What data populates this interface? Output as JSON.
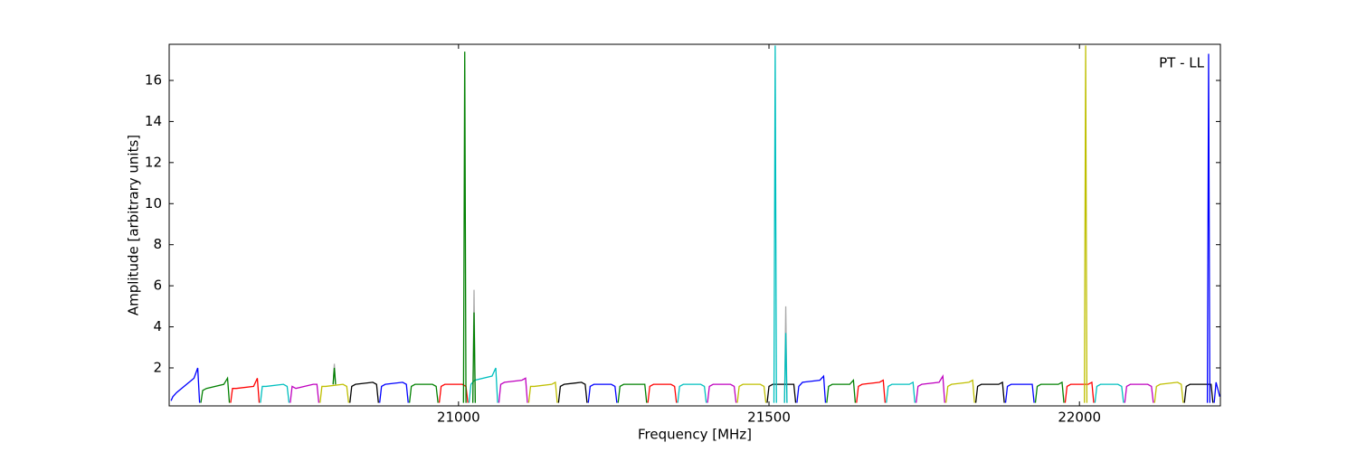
{
  "chart_data": {
    "type": "line",
    "xlabel": "Frequency [MHz]",
    "ylabel": "Amplitude [arbitrary units]",
    "annotation": "PT - LL",
    "xlim": [
      20534,
      22227
    ],
    "ylim": [
      0.15,
      17.76
    ],
    "xticks": [
      21000,
      21500,
      22000
    ],
    "yticks": [
      2,
      4,
      6,
      8,
      10,
      12,
      14,
      16
    ],
    "series": [
      {
        "color": "#aaaaaa",
        "x": [
          20798,
          20800,
          20802
        ],
        "values": [
          1.2,
          2.2,
          1.2
        ]
      },
      {
        "color": "#aaaaaa",
        "x": [
          21023,
          21025,
          21027
        ],
        "values": [
          0.3,
          5.8,
          0.3
        ]
      },
      {
        "color": "#aaaaaa",
        "x": [
          21525,
          21527,
          21529
        ],
        "values": [
          0.3,
          5.0,
          0.3
        ]
      },
      {
        "color": "#0000ff",
        "x": [
          20537,
          20540,
          20546,
          20574,
          20580,
          20583
        ],
        "values": [
          0.4,
          0.6,
          0.8,
          1.5,
          2.0,
          0.3
        ]
      },
      {
        "color": "#008000",
        "x": [
          20585,
          20588,
          20594,
          20622,
          20628,
          20631
        ],
        "values": [
          0.3,
          0.9,
          1.0,
          1.2,
          1.5,
          0.3
        ]
      },
      {
        "color": "#ff0000",
        "x": [
          20633,
          20636,
          20642,
          20670,
          20676,
          20679
        ],
        "values": [
          0.3,
          1.0,
          1.0,
          1.1,
          1.5,
          0.3
        ]
      },
      {
        "color": "#00bfbf",
        "x": [
          20681,
          20684,
          20690,
          20718,
          20724,
          20727
        ],
        "values": [
          0.3,
          1.1,
          1.1,
          1.2,
          1.1,
          0.3
        ]
      },
      {
        "color": "#bf00bf",
        "x": [
          20729,
          20732,
          20738,
          20766,
          20772,
          20775
        ],
        "values": [
          0.3,
          1.1,
          1.0,
          1.2,
          1.2,
          0.3
        ]
      },
      {
        "color": "#bfbf00",
        "x": [
          20777,
          20780,
          20786,
          20814,
          20820,
          20823
        ],
        "values": [
          0.3,
          1.1,
          1.1,
          1.2,
          1.1,
          0.3
        ]
      },
      {
        "color": "#000000",
        "x": [
          20825,
          20828,
          20834,
          20862,
          20868,
          20871
        ],
        "values": [
          0.3,
          1.1,
          1.2,
          1.3,
          1.2,
          0.3
        ]
      },
      {
        "color": "#0000ff",
        "x": [
          20873,
          20876,
          20882,
          20910,
          20916,
          20919
        ],
        "values": [
          0.3,
          1.1,
          1.2,
          1.3,
          1.2,
          0.3
        ]
      },
      {
        "color": "#008000",
        "x": [
          20921,
          20924,
          20930,
          20958,
          20964,
          20967
        ],
        "values": [
          0.3,
          1.1,
          1.2,
          1.2,
          1.1,
          0.3
        ]
      },
      {
        "color": "#ff0000",
        "x": [
          20969,
          20972,
          20978,
          21006,
          21012,
          21015
        ],
        "values": [
          0.3,
          1.1,
          1.2,
          1.2,
          1.1,
          0.3
        ]
      },
      {
        "color": "#00bfbf",
        "x": [
          21017,
          21020,
          21026,
          21054,
          21060,
          21063
        ],
        "values": [
          0.3,
          1.2,
          1.4,
          1.6,
          2.0,
          0.3
        ]
      },
      {
        "color": "#bf00bf",
        "x": [
          21065,
          21068,
          21074,
          21102,
          21108,
          21111
        ],
        "values": [
          0.3,
          1.2,
          1.3,
          1.4,
          1.5,
          0.3
        ]
      },
      {
        "color": "#bfbf00",
        "x": [
          21113,
          21116,
          21122,
          21150,
          21156,
          21159
        ],
        "values": [
          0.3,
          1.1,
          1.1,
          1.2,
          1.3,
          0.3
        ]
      },
      {
        "color": "#000000",
        "x": [
          21161,
          21164,
          21170,
          21198,
          21204,
          21207
        ],
        "values": [
          0.3,
          1.1,
          1.2,
          1.3,
          1.2,
          0.3
        ]
      },
      {
        "color": "#0000ff",
        "x": [
          21209,
          21212,
          21218,
          21246,
          21252,
          21255
        ],
        "values": [
          0.3,
          1.1,
          1.2,
          1.2,
          1.1,
          0.3
        ]
      },
      {
        "color": "#008000",
        "x": [
          21257,
          21260,
          21266,
          21294,
          21300,
          21303
        ],
        "values": [
          0.3,
          1.1,
          1.2,
          1.2,
          1.2,
          0.3
        ]
      },
      {
        "color": "#ff0000",
        "x": [
          21305,
          21308,
          21314,
          21342,
          21348,
          21351
        ],
        "values": [
          0.3,
          1.1,
          1.2,
          1.2,
          1.1,
          0.3
        ]
      },
      {
        "color": "#00bfbf",
        "x": [
          21353,
          21356,
          21362,
          21390,
          21396,
          21399
        ],
        "values": [
          0.3,
          1.1,
          1.2,
          1.2,
          1.1,
          0.3
        ]
      },
      {
        "color": "#bf00bf",
        "x": [
          21401,
          21404,
          21410,
          21438,
          21444,
          21447
        ],
        "values": [
          0.3,
          1.1,
          1.2,
          1.2,
          1.1,
          0.3
        ]
      },
      {
        "color": "#bfbf00",
        "x": [
          21449,
          21452,
          21458,
          21486,
          21492,
          21495
        ],
        "values": [
          0.3,
          1.1,
          1.2,
          1.2,
          1.1,
          0.3
        ]
      },
      {
        "color": "#000000",
        "x": [
          21497,
          21500,
          21506,
          21534,
          21540,
          21543
        ],
        "values": [
          0.3,
          1.1,
          1.2,
          1.2,
          1.2,
          0.3
        ]
      },
      {
        "color": "#0000ff",
        "x": [
          21545,
          21548,
          21554,
          21582,
          21588,
          21591
        ],
        "values": [
          0.3,
          1.1,
          1.3,
          1.4,
          1.6,
          0.3
        ]
      },
      {
        "color": "#008000",
        "x": [
          21593,
          21596,
          21602,
          21630,
          21636,
          21639
        ],
        "values": [
          0.3,
          1.1,
          1.2,
          1.2,
          1.4,
          0.3
        ]
      },
      {
        "color": "#ff0000",
        "x": [
          21641,
          21644,
          21650,
          21678,
          21684,
          21687
        ],
        "values": [
          0.3,
          1.1,
          1.2,
          1.3,
          1.4,
          0.3
        ]
      },
      {
        "color": "#00bfbf",
        "x": [
          21689,
          21692,
          21698,
          21726,
          21732,
          21735
        ],
        "values": [
          0.3,
          1.1,
          1.2,
          1.2,
          1.3,
          0.3
        ]
      },
      {
        "color": "#bf00bf",
        "x": [
          21737,
          21740,
          21746,
          21774,
          21780,
          21783
        ],
        "values": [
          0.3,
          1.1,
          1.2,
          1.3,
          1.6,
          0.3
        ]
      },
      {
        "color": "#bfbf00",
        "x": [
          21785,
          21788,
          21794,
          21822,
          21828,
          21831
        ],
        "values": [
          0.3,
          1.1,
          1.2,
          1.3,
          1.4,
          0.3
        ]
      },
      {
        "color": "#000000",
        "x": [
          21833,
          21836,
          21842,
          21870,
          21876,
          21879
        ],
        "values": [
          0.3,
          1.1,
          1.2,
          1.2,
          1.3,
          0.3
        ]
      },
      {
        "color": "#0000ff",
        "x": [
          21881,
          21884,
          21890,
          21918,
          21924,
          21927
        ],
        "values": [
          0.3,
          1.1,
          1.2,
          1.2,
          1.2,
          0.3
        ]
      },
      {
        "color": "#008000",
        "x": [
          21929,
          21932,
          21938,
          21966,
          21972,
          21975
        ],
        "values": [
          0.3,
          1.1,
          1.2,
          1.2,
          1.3,
          0.3
        ]
      },
      {
        "color": "#ff0000",
        "x": [
          21977,
          21980,
          21986,
          22014,
          22020,
          22023
        ],
        "values": [
          0.3,
          1.1,
          1.2,
          1.2,
          1.3,
          0.3
        ]
      },
      {
        "color": "#00bfbf",
        "x": [
          22025,
          22028,
          22034,
          22062,
          22068,
          22071
        ],
        "values": [
          0.3,
          1.1,
          1.2,
          1.2,
          1.1,
          0.3
        ]
      },
      {
        "color": "#bf00bf",
        "x": [
          22073,
          22076,
          22082,
          22110,
          22116,
          22119
        ],
        "values": [
          0.3,
          1.1,
          1.2,
          1.2,
          1.1,
          0.3
        ]
      },
      {
        "color": "#bfbf00",
        "x": [
          22121,
          22124,
          22130,
          22158,
          22164,
          22167
        ],
        "values": [
          0.3,
          1.1,
          1.2,
          1.3,
          1.2,
          0.3
        ]
      },
      {
        "color": "#000000",
        "x": [
          22169,
          22172,
          22178,
          22206,
          22212,
          22215
        ],
        "values": [
          0.3,
          1.1,
          1.2,
          1.2,
          1.2,
          0.3
        ]
      },
      {
        "color": "#0000ff",
        "x": [
          22217,
          22220,
          22226
        ],
        "values": [
          0.3,
          1.3,
          0.6
        ]
      },
      {
        "color": "#008000",
        "x": [
          20798,
          20800,
          20802
        ],
        "values": [
          1.2,
          2.0,
          1.2
        ]
      },
      {
        "color": "#008000",
        "x": [
          21008,
          21010,
          21012
        ],
        "values": [
          0.3,
          17.4,
          0.3
        ]
      },
      {
        "color": "#008000",
        "x": [
          21023,
          21025,
          21027
        ],
        "values": [
          0.3,
          4.7,
          0.3
        ]
      },
      {
        "color": "#00bfbf",
        "x": [
          21508,
          21510,
          21512
        ],
        "values": [
          0.3,
          17.7,
          0.3
        ]
      },
      {
        "color": "#00bfbf",
        "x": [
          21525,
          21527,
          21529
        ],
        "values": [
          0.3,
          3.7,
          0.3
        ]
      },
      {
        "color": "#bfbf00",
        "x": [
          22008,
          22010,
          22012
        ],
        "values": [
          0.3,
          17.7,
          0.3
        ]
      },
      {
        "color": "#0000ff",
        "x": [
          22206,
          22208,
          22210
        ],
        "values": [
          0.3,
          17.3,
          0.3
        ]
      }
    ]
  }
}
